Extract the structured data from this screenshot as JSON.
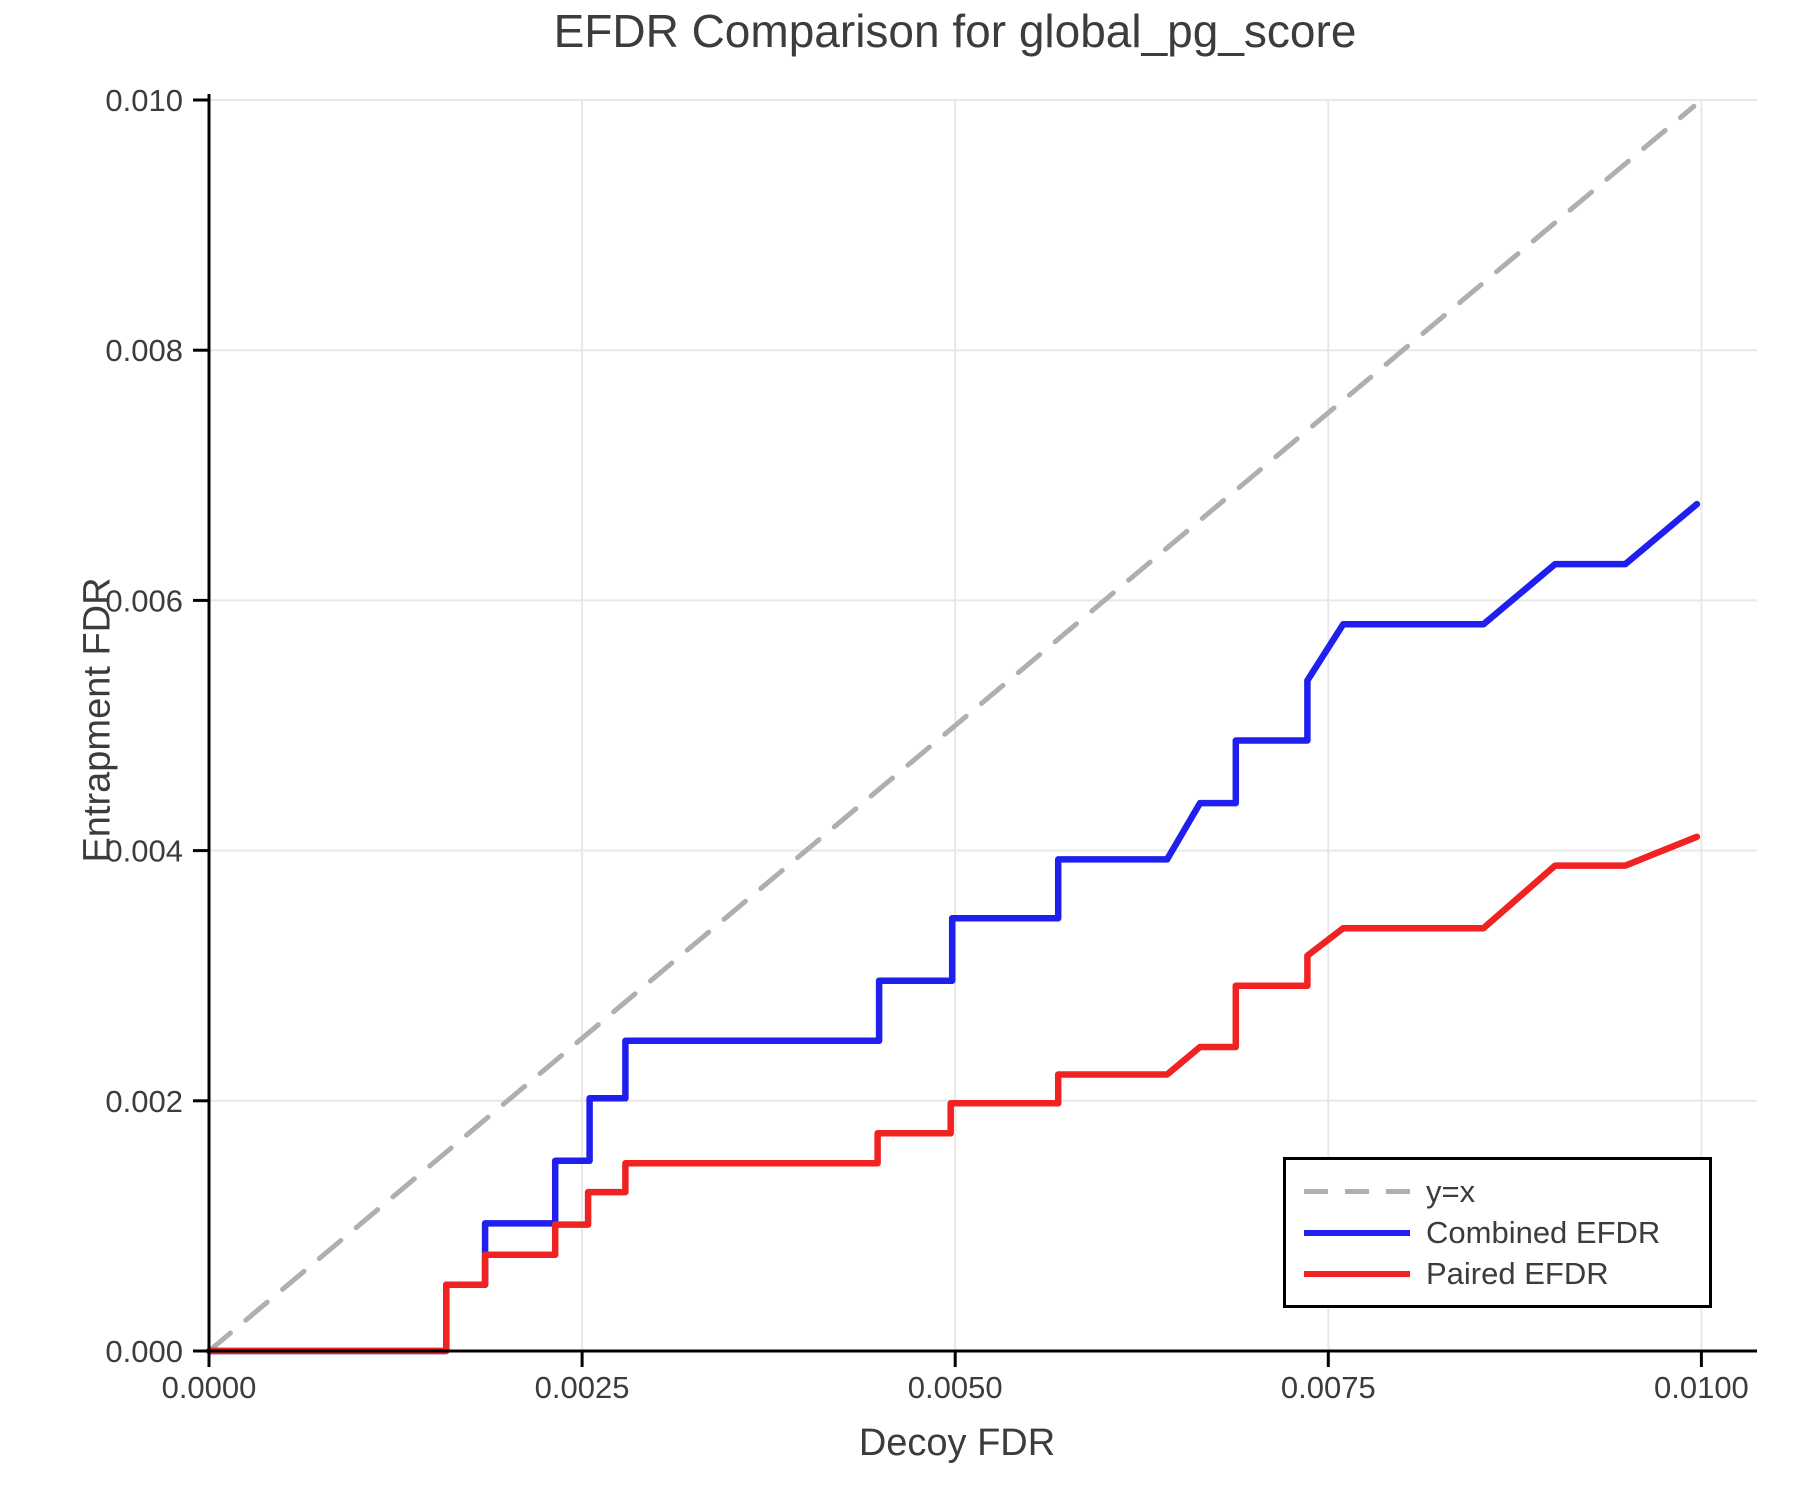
{
  "chart_data": {
    "type": "line",
    "title": "EFDR Comparison for global_pg_score",
    "xlabel": "Decoy FDR",
    "ylabel": "Entrapment FDR",
    "xlim": [
      0.0,
      0.0104
    ],
    "ylim": [
      0.0,
      0.01005
    ],
    "grid": true,
    "legend_position": "bottom-right",
    "xticks": [
      0.0,
      0.0025,
      0.005,
      0.0075,
      0.01
    ],
    "xtick_labels": [
      "0.0000",
      "0.0025",
      "0.0050",
      "0.0075",
      "0.0100"
    ],
    "yticks": [
      0.0,
      0.002,
      0.004,
      0.006,
      0.008,
      0.01
    ],
    "ytick_labels": [
      "0.000",
      "0.002",
      "0.004",
      "0.006",
      "0.008",
      "0.010"
    ],
    "colors": {
      "identity": "#afafaf",
      "combined": "#2020ee",
      "paired": "#f02222",
      "gridline": "#e8e8e8",
      "axis": "#000000",
      "text": "#3c3c3c"
    },
    "series": [
      {
        "name": "y=x",
        "style": "dashed",
        "color": "#afafaf",
        "points": [
          [
            0.0,
            0.0
          ],
          [
            0.00995,
            0.00995
          ]
        ]
      },
      {
        "name": "Combined EFDR",
        "style": "solid",
        "color": "#2020ee",
        "points": [
          [
            0.0,
            0.0
          ],
          [
            0.00159,
            0.0
          ],
          [
            0.00159,
            0.00053
          ],
          [
            0.00185,
            0.00053
          ],
          [
            0.00185,
            0.00102
          ],
          [
            0.00232,
            0.00102
          ],
          [
            0.00232,
            0.00152
          ],
          [
            0.00255,
            0.00152
          ],
          [
            0.00255,
            0.00202
          ],
          [
            0.00279,
            0.00202
          ],
          [
            0.00279,
            0.00248
          ],
          [
            0.00449,
            0.00248
          ],
          [
            0.00449,
            0.00296
          ],
          [
            0.00498,
            0.00296
          ],
          [
            0.00498,
            0.00346
          ],
          [
            0.00569,
            0.00346
          ],
          [
            0.00569,
            0.00393
          ],
          [
            0.00642,
            0.00393
          ],
          [
            0.00664,
            0.00438
          ],
          [
            0.00688,
            0.00438
          ],
          [
            0.00688,
            0.00488
          ],
          [
            0.00736,
            0.00488
          ],
          [
            0.00736,
            0.00536
          ],
          [
            0.0076,
            0.00581
          ],
          [
            0.00854,
            0.00581
          ],
          [
            0.00902,
            0.00629
          ],
          [
            0.00949,
            0.00629
          ],
          [
            0.00997,
            0.00677
          ]
        ]
      },
      {
        "name": "Paired EFDR",
        "style": "solid",
        "color": "#f02222",
        "points": [
          [
            0.0,
            0.0
          ],
          [
            0.00159,
            0.0
          ],
          [
            0.00159,
            0.00053
          ],
          [
            0.00185,
            0.00053
          ],
          [
            0.00185,
            0.00077
          ],
          [
            0.00232,
            0.00077
          ],
          [
            0.00232,
            0.00101
          ],
          [
            0.00254,
            0.00101
          ],
          [
            0.00254,
            0.00127
          ],
          [
            0.00279,
            0.00127
          ],
          [
            0.00279,
            0.0015
          ],
          [
            0.00448,
            0.0015
          ],
          [
            0.00448,
            0.00174
          ],
          [
            0.00497,
            0.00174
          ],
          [
            0.00497,
            0.00198
          ],
          [
            0.00569,
            0.00198
          ],
          [
            0.00569,
            0.00221
          ],
          [
            0.00642,
            0.00221
          ],
          [
            0.00664,
            0.00243
          ],
          [
            0.00688,
            0.00243
          ],
          [
            0.00688,
            0.00292
          ],
          [
            0.00736,
            0.00292
          ],
          [
            0.00736,
            0.00316
          ],
          [
            0.0076,
            0.00338
          ],
          [
            0.00854,
            0.00338
          ],
          [
            0.00902,
            0.00388
          ],
          [
            0.00949,
            0.00388
          ],
          [
            0.00997,
            0.00411
          ]
        ]
      }
    ]
  },
  "legend": {
    "entries": [
      {
        "label": "y=x"
      },
      {
        "label": "Combined EFDR"
      },
      {
        "label": "Paired EFDR"
      }
    ]
  }
}
